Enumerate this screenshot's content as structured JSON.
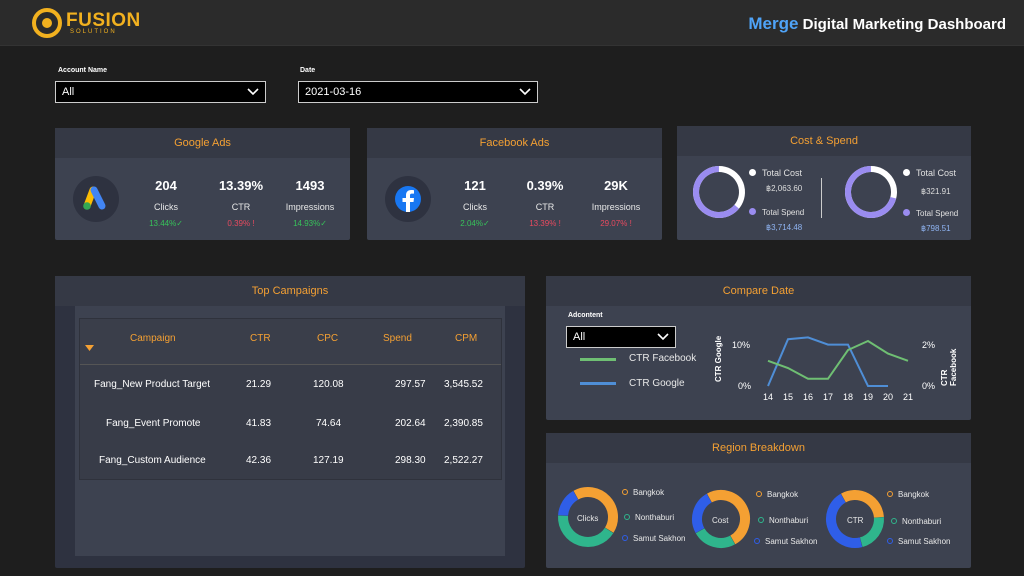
{
  "header": {
    "logo_word": "FUSION",
    "logo_sub": "SOLUTION",
    "title_prefix": "Merge",
    "title_rest": "Digital Marketing Dashboard"
  },
  "filters": {
    "account_label": "Account Name",
    "account_value": "All",
    "date_label": "Date",
    "date_value": "2021-03-16"
  },
  "google_ads": {
    "title": "Google Ads",
    "icon": "google-ads-icon",
    "metrics": [
      {
        "value": "204",
        "label": "Clicks",
        "change": "13.44%",
        "trend": "up"
      },
      {
        "value": "13.39%",
        "label": "CTR",
        "change": "0.39%",
        "trend": "down"
      },
      {
        "value": "1493",
        "label": "Impressions",
        "change": "14.93%",
        "trend": "up"
      }
    ]
  },
  "facebook_ads": {
    "title": "Facebook Ads",
    "icon": "facebook-icon",
    "metrics": [
      {
        "value": "121",
        "label": "Clicks",
        "change": "2.04%",
        "trend": "up"
      },
      {
        "value": "0.39%",
        "label": "CTR",
        "change": "13.39%",
        "trend": "down"
      },
      {
        "value": "29K",
        "label": "Impressions",
        "change": "29.07%",
        "trend": "down"
      }
    ]
  },
  "cost_spend": {
    "title": "Cost & Spend",
    "groups": [
      {
        "cost_label": "Total Cost",
        "cost": "฿2,063.60",
        "spend_label": "Total Spend",
        "spend": "฿3,714.48",
        "spend_fraction": 0.64
      },
      {
        "cost_label": "Total Cost",
        "cost": "฿321.91",
        "spend_label": "Total Spend",
        "spend": "฿798.51",
        "spend_fraction": 0.71
      }
    ],
    "colors": {
      "cost": "#ffffff",
      "spend": "#9a8cf0"
    }
  },
  "top_campaigns": {
    "title": "Top Campaigns",
    "columns": [
      "Campaign",
      "CTR",
      "CPC",
      "Spend",
      "CPM"
    ],
    "rows": [
      [
        "Fang_New Product Target",
        "21.29",
        "120.08",
        "297.57",
        "3,545.52"
      ],
      [
        "Fang_Event Promote",
        "41.83",
        "74.64",
        "202.64",
        "2,390.85"
      ],
      [
        "Fang_Custom Audience",
        "42.36",
        "127.19",
        "298.30",
        "2,522.27"
      ]
    ]
  },
  "compare_date": {
    "title": "Compare Date",
    "adcontent_label": "Adcontent",
    "adcontent_value": "All",
    "legend": [
      {
        "name": "CTR Facebook",
        "color": "#6fbf73"
      },
      {
        "name": "CTR Google",
        "color": "#4f8ed6"
      }
    ],
    "left_axis_label": "CTR Google",
    "right_axis_label": "CTR Facebook",
    "left_ticks": [
      "10%",
      "0%"
    ],
    "right_ticks": [
      "2%",
      "0%"
    ],
    "x_ticks": [
      "14",
      "15",
      "16",
      "17",
      "18",
      "19",
      "20",
      "21"
    ]
  },
  "chart_data": {
    "type": "line",
    "x": [
      14,
      15,
      16,
      17,
      18,
      19,
      20,
      21
    ],
    "series": [
      {
        "name": "CTR Google",
        "axis": "left",
        "values": [
          0,
          13,
          13.5,
          11.5,
          11.5,
          0,
          0,
          null
        ]
      },
      {
        "name": "CTR Facebook",
        "axis": "right",
        "values": [
          1.4,
          1.0,
          0.4,
          0.4,
          2.0,
          2.5,
          1.8,
          1.4
        ]
      }
    ],
    "xlabel": "",
    "ylabel": "CTR Google",
    "y2label": "CTR Facebook",
    "ylim": [
      0,
      15
    ],
    "y2lim": [
      0,
      3
    ]
  },
  "region": {
    "title": "Region Breakdown",
    "legend": [
      {
        "name": "Bangkok",
        "color": "#f4a033"
      },
      {
        "name": "Nonthaburi",
        "color": "#2fb58c"
      },
      {
        "name": "Samut Sakhon",
        "color": "#2f5ee8"
      }
    ],
    "donuts": [
      {
        "label": "Clicks",
        "shares": [
          0.42,
          0.42,
          0.16
        ],
        "start": -0.08
      },
      {
        "label": "Cost",
        "shares": [
          0.5,
          0.25,
          0.25
        ],
        "start": -0.08
      },
      {
        "label": "CTR",
        "shares": [
          0.32,
          0.22,
          0.46
        ],
        "start": -0.08
      }
    ]
  }
}
